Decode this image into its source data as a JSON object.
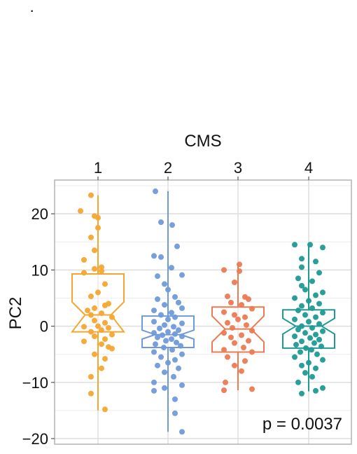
{
  "chart_data": {
    "type": "boxplot",
    "title": "",
    "xlabel": "CMS",
    "ylabel": "PC2",
    "x_axis_position": "top",
    "categories": [
      "1",
      "2",
      "3",
      "4"
    ],
    "colors": [
      "#f4a631",
      "#6f9ad9",
      "#ec7a52",
      "#1f9a93"
    ],
    "ylim": [
      -21,
      26
    ],
    "yticks": [
      -20,
      -10,
      0,
      10,
      20
    ],
    "ytick_labels": [
      "−20",
      "−10",
      "0",
      "10",
      "20"
    ],
    "grid": true,
    "notched": true,
    "annotation": "p = 0.0037",
    "boxes": [
      {
        "category": "1",
        "whisker_low": -15,
        "q1": -1,
        "median": 2,
        "q3": 9.3,
        "whisker_high": 23.3,
        "notch_low": -1.0,
        "notch_high": 4.3
      },
      {
        "category": "2",
        "whisker_low": -18.8,
        "q1": -3.8,
        "median": -1.5,
        "q3": 1.8,
        "whisker_high": 24,
        "notch_low": -2.3,
        "notch_high": -0.7
      },
      {
        "category": "3",
        "whisker_low": -11.4,
        "q1": -4.6,
        "median": -0.5,
        "q3": 3.4,
        "whisker_high": 11,
        "notch_low": -2.8,
        "notch_high": 1.8
      },
      {
        "category": "4",
        "whisker_low": -11.6,
        "q1": -3.9,
        "median": 0,
        "q3": 2.9,
        "whisker_high": 14.5,
        "notch_low": -1.4,
        "notch_high": 1.4
      }
    ],
    "points": [
      [
        [
          -0.1,
          23.3
        ],
        [
          -0.25,
          20.5
        ],
        [
          -0.05,
          19.6
        ],
        [
          0,
          19.3
        ],
        [
          0,
          17.5
        ],
        [
          -0.1,
          15.8
        ],
        [
          -0.05,
          13.5
        ],
        [
          -0.2,
          11.8
        ],
        [
          0.05,
          10.5
        ],
        [
          -0.05,
          10.2
        ],
        [
          0.05,
          9.8
        ],
        [
          -0.2,
          9.5
        ],
        [
          0.1,
          7.5
        ],
        [
          0,
          6
        ],
        [
          -0.1,
          5.3
        ],
        [
          0.15,
          4
        ],
        [
          0.1,
          3.7
        ],
        [
          -0.05,
          3.2
        ],
        [
          -0.15,
          2.8
        ],
        [
          0.05,
          2.3
        ],
        [
          -0.1,
          2
        ],
        [
          0.2,
          1.6
        ],
        [
          -0.05,
          1
        ],
        [
          0.1,
          0.6
        ],
        [
          0,
          0
        ],
        [
          -0.2,
          -0.1
        ],
        [
          0.15,
          -0.3
        ],
        [
          0.05,
          -0.7
        ],
        [
          -0.1,
          -1
        ],
        [
          0.2,
          -1.5
        ],
        [
          -0.05,
          -1.8
        ],
        [
          0.1,
          -2.3
        ],
        [
          -0.2,
          -2.7
        ],
        [
          0.05,
          -3.2
        ],
        [
          0.15,
          -3.7
        ],
        [
          0.2,
          -4
        ],
        [
          -0.05,
          -5
        ],
        [
          0.1,
          -5.8
        ],
        [
          0.05,
          -7.5
        ],
        [
          -0.1,
          -9
        ],
        [
          -0.1,
          -12
        ],
        [
          0.1,
          -14.8
        ]
      ],
      [
        [
          -0.18,
          24
        ],
        [
          -0.1,
          18.5
        ],
        [
          0.06,
          18
        ],
        [
          0.13,
          14.2
        ],
        [
          -0.2,
          12.5
        ],
        [
          -0.1,
          12.3
        ],
        [
          0.05,
          10.4
        ],
        [
          -0.15,
          8.9
        ],
        [
          0.2,
          9.1
        ],
        [
          -0.05,
          7.5
        ],
        [
          0,
          6.5
        ],
        [
          0.1,
          5.2
        ],
        [
          -0.15,
          4.8
        ],
        [
          0.15,
          4.2
        ],
        [
          -0.05,
          3.8
        ],
        [
          0.2,
          3.2
        ],
        [
          -0.2,
          2.8
        ],
        [
          0.05,
          2.4
        ],
        [
          -0.1,
          2
        ],
        [
          0.1,
          1.6
        ],
        [
          0,
          1.2
        ],
        [
          -0.2,
          0.8
        ],
        [
          0.2,
          0.5
        ],
        [
          -0.05,
          0.2
        ],
        [
          0.08,
          -0.1
        ],
        [
          -0.12,
          -0.4
        ],
        [
          0.15,
          -0.7
        ],
        [
          0,
          -1
        ],
        [
          -0.2,
          -1.2
        ],
        [
          0.1,
          -1.4
        ],
        [
          -0.08,
          -1.6
        ],
        [
          0.2,
          -1.8
        ],
        [
          -0.15,
          -2
        ],
        [
          0.05,
          -2.3
        ],
        [
          -0.03,
          -2.6
        ],
        [
          0.12,
          -2.9
        ],
        [
          -0.18,
          -3.2
        ],
        [
          0.18,
          -3.5
        ],
        [
          -0.06,
          -3.8
        ],
        [
          0.06,
          -4.2
        ],
        [
          -0.2,
          -4.6
        ],
        [
          0.2,
          -5
        ],
        [
          -0.1,
          -5.5
        ],
        [
          0.1,
          -6
        ],
        [
          0,
          -6.5
        ],
        [
          -0.15,
          -7
        ],
        [
          0.15,
          -7.5
        ],
        [
          -0.05,
          -8.2
        ],
        [
          0.08,
          -9
        ],
        [
          -0.2,
          -10
        ],
        [
          0.2,
          -10.5
        ],
        [
          -0.05,
          -11
        ],
        [
          -0.2,
          -11.5
        ],
        [
          0.1,
          -13
        ],
        [
          0.1,
          -15.5
        ],
        [
          0.2,
          -18.8
        ]
      ],
      [
        [
          0.02,
          11
        ],
        [
          -0.2,
          10
        ],
        [
          0.02,
          9.8
        ],
        [
          -0.05,
          7.8
        ],
        [
          -0.15,
          5.3
        ],
        [
          0.1,
          5.2
        ],
        [
          0.15,
          4.8
        ],
        [
          -0.1,
          4.2
        ],
        [
          0.05,
          3.8
        ],
        [
          0.2,
          3.1
        ],
        [
          -0.2,
          2.5
        ],
        [
          -0.05,
          2
        ],
        [
          0.1,
          1.6
        ],
        [
          0,
          1.2
        ],
        [
          -0.15,
          0.6
        ],
        [
          0.12,
          0.2
        ],
        [
          -0.08,
          -0.3
        ],
        [
          0.2,
          -0.8
        ],
        [
          -0.2,
          -1.2
        ],
        [
          0.05,
          -1.6
        ],
        [
          -0.1,
          -2
        ],
        [
          0.15,
          -2.6
        ],
        [
          -0.05,
          -3
        ],
        [
          0.08,
          -3.8
        ],
        [
          -0.2,
          -4.2
        ],
        [
          0.2,
          -4.6
        ],
        [
          -0.15,
          -5.5
        ],
        [
          0.1,
          -6.2
        ],
        [
          -0.05,
          -7
        ],
        [
          0.05,
          -8
        ],
        [
          -0.18,
          -10
        ],
        [
          0.2,
          -11.2
        ],
        [
          -0.2,
          -11.4
        ]
      ],
      [
        [
          -0.2,
          14.5
        ],
        [
          0.02,
          14.5
        ],
        [
          0.2,
          14
        ],
        [
          -0.1,
          12
        ],
        [
          0.1,
          11.5
        ],
        [
          -0.1,
          10.5
        ],
        [
          0.15,
          9.5
        ],
        [
          -0.15,
          8.5
        ],
        [
          0.05,
          8
        ],
        [
          -0.1,
          7.2
        ],
        [
          -0.05,
          6.5
        ],
        [
          0.2,
          6
        ],
        [
          0.1,
          5.5
        ],
        [
          -0.2,
          5
        ],
        [
          0,
          4.5
        ],
        [
          0.15,
          4
        ],
        [
          -0.1,
          3.6
        ],
        [
          0.05,
          3.2
        ],
        [
          -0.15,
          2.8
        ],
        [
          0.2,
          2.4
        ],
        [
          -0.05,
          2
        ],
        [
          0.1,
          1.6
        ],
        [
          -0.2,
          1.2
        ],
        [
          0,
          0.8
        ],
        [
          0.15,
          0.4
        ],
        [
          -0.1,
          0
        ],
        [
          0.05,
          -0.3
        ],
        [
          -0.15,
          -0.6
        ],
        [
          0.2,
          -0.9
        ],
        [
          -0.05,
          -1.2
        ],
        [
          0.1,
          -1.5
        ],
        [
          -0.2,
          -1.8
        ],
        [
          0.02,
          -2.1
        ],
        [
          0.15,
          -2.4
        ],
        [
          -0.1,
          -2.7
        ],
        [
          0.08,
          -3
        ],
        [
          -0.18,
          -3.3
        ],
        [
          0.18,
          -3.6
        ],
        [
          -0.04,
          -3.9
        ],
        [
          0.04,
          -4.2
        ],
        [
          -0.12,
          -4.6
        ],
        [
          0.12,
          -5
        ],
        [
          -0.2,
          -5.5
        ],
        [
          0.2,
          -6
        ],
        [
          0,
          -6.5
        ],
        [
          -0.1,
          -7
        ],
        [
          0.1,
          -7.5
        ],
        [
          -0.05,
          -8.3
        ],
        [
          0.05,
          -9
        ],
        [
          -0.15,
          -10
        ],
        [
          0.2,
          -11
        ],
        [
          0.1,
          -11.5
        ],
        [
          -0.1,
          -12
        ]
      ]
    ]
  }
}
